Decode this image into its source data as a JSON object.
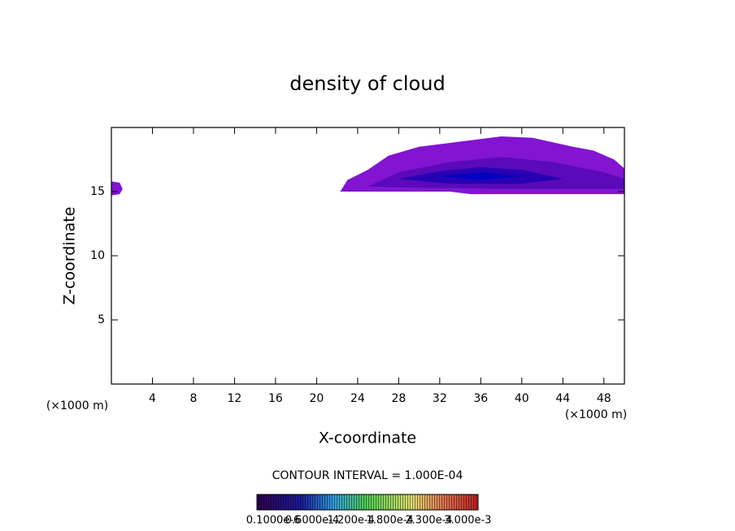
{
  "chart_data": {
    "type": "contour",
    "title": "density of cloud",
    "x_label": "X-coordinate",
    "y_label": "Z-coordinate",
    "x_unit_left": "(×1000 m)",
    "x_unit_right": "(×1000 m)",
    "xlim": [
      0,
      50
    ],
    "ylim": [
      0,
      20
    ],
    "xticks": [
      4,
      8,
      12,
      16,
      20,
      24,
      28,
      32,
      36,
      40,
      44,
      48
    ],
    "yticks": [
      5,
      10,
      15
    ],
    "contour_interval": "CONTOUR INTERVAL = 1.000E-04",
    "colorbar_labels": [
      "0.1000e-6",
      "0.6000e-4",
      "1.200e-4",
      "1.800e-4",
      "2.300e-4",
      "3.000e-3"
    ],
    "contours": [
      {
        "color": "#8214d2",
        "points": [
          [
            22.3,
            15
          ],
          [
            23,
            15.9
          ],
          [
            25,
            16.7
          ],
          [
            27,
            17.8
          ],
          [
            30,
            18.5
          ],
          [
            33,
            18.8
          ],
          [
            38,
            19.3
          ],
          [
            41,
            19.2
          ],
          [
            45,
            18.5
          ],
          [
            47,
            18.2
          ],
          [
            49,
            17.5
          ],
          [
            50,
            16.8
          ],
          [
            50,
            14.8
          ],
          [
            35,
            14.8
          ],
          [
            33,
            15
          ]
        ]
      },
      {
        "color": "#8214d2",
        "points": [
          [
            0,
            14.7
          ],
          [
            0.8,
            14.8
          ],
          [
            1.1,
            15.2
          ],
          [
            0.8,
            15.7
          ],
          [
            0,
            15.8
          ]
        ]
      },
      {
        "color": "#5a0ab9",
        "points": [
          [
            25,
            15.4
          ],
          [
            28,
            16.5
          ],
          [
            33,
            17.3
          ],
          [
            38,
            17.7
          ],
          [
            43,
            17.3
          ],
          [
            48,
            16.5
          ],
          [
            50,
            16
          ],
          [
            50,
            15.2
          ],
          [
            40,
            15.2
          ],
          [
            30,
            15.3
          ]
        ]
      },
      {
        "color": "#2800b4",
        "points": [
          [
            28,
            16
          ],
          [
            32,
            16.6
          ],
          [
            36,
            16.9
          ],
          [
            40,
            16.7
          ],
          [
            44,
            16
          ],
          [
            40,
            15.6
          ],
          [
            33,
            15.6
          ]
        ]
      },
      {
        "color": "#0000c3",
        "points": [
          [
            32,
            16.2
          ],
          [
            36,
            16.5
          ],
          [
            40,
            16.2
          ],
          [
            36,
            15.9
          ]
        ]
      }
    ]
  }
}
